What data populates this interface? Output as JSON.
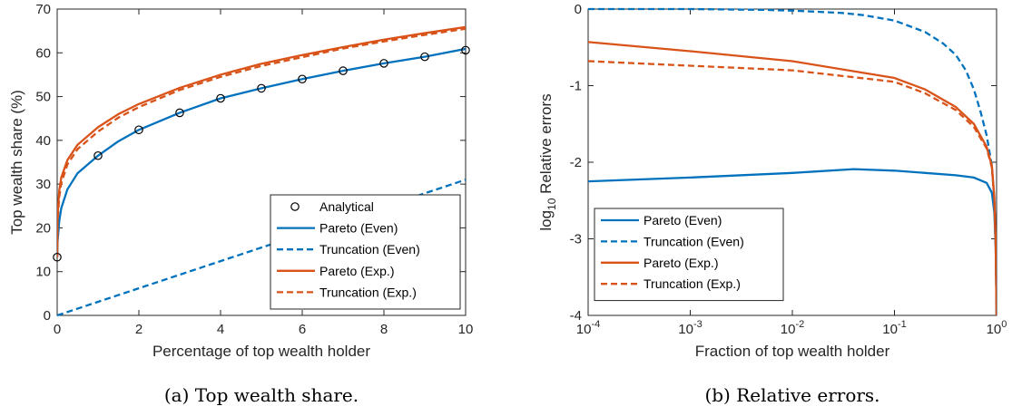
{
  "colors": {
    "blue": "#0072BD",
    "orange": "#D95319",
    "axis": "#262626"
  },
  "chart_data": [
    {
      "type": "line",
      "caption": "(a) Top wealth share.",
      "xlabel": "Percentage of top wealth holder",
      "ylabel": "Top wealth share (%)",
      "xlim": [
        0,
        10
      ],
      "ylim": [
        0,
        70
      ],
      "xticks": [
        0,
        2,
        4,
        6,
        8,
        10
      ],
      "yticks": [
        0,
        10,
        20,
        30,
        40,
        50,
        60,
        70
      ],
      "xtick_labels": [
        "0",
        "2",
        "4",
        "6",
        "8",
        "10"
      ],
      "ytick_labels": [
        "0",
        "10",
        "20",
        "30",
        "40",
        "50",
        "60",
        "70"
      ],
      "grid": false,
      "legend_position": "bottom-right",
      "series": [
        {
          "name": "Analytical",
          "style": "markers",
          "color": "#000000",
          "x": [
            0,
            1,
            2,
            3,
            4,
            5,
            6,
            7,
            8,
            9,
            10
          ],
          "y": [
            13.3,
            36.5,
            42.4,
            46.3,
            49.6,
            51.9,
            54.0,
            55.9,
            57.6,
            59.1,
            60.6
          ]
        },
        {
          "name": "Pareto (Even)",
          "style": "solid",
          "color": "#0072BD",
          "x": [
            0,
            0.01,
            0.05,
            0.1,
            0.25,
            0.5,
            1,
            1.5,
            2,
            3,
            4,
            5,
            6,
            7,
            8,
            9,
            10
          ],
          "y": [
            13.3,
            17.0,
            21.5,
            24.5,
            28.8,
            32.5,
            36.5,
            39.8,
            42.4,
            46.3,
            49.6,
            51.9,
            54.0,
            55.9,
            57.6,
            59.1,
            60.9
          ]
        },
        {
          "name": "Truncation (Even)",
          "style": "dashed",
          "color": "#0072BD",
          "x": [
            0,
            10
          ],
          "y": [
            0,
            31.0
          ]
        },
        {
          "name": "Pareto (Exp.)",
          "style": "solid",
          "color": "#D95319",
          "x": [
            0,
            0.01,
            0.05,
            0.1,
            0.25,
            0.5,
            1,
            1.5,
            2,
            3,
            4,
            5,
            6,
            7,
            8,
            9,
            10
          ],
          "y": [
            13.3,
            23.0,
            28.5,
            31.5,
            35.5,
            39.0,
            43.0,
            46.0,
            48.3,
            52.0,
            55.0,
            57.5,
            59.5,
            61.3,
            63.0,
            64.5,
            65.9
          ]
        },
        {
          "name": "Truncation (Exp.)",
          "style": "dashed",
          "color": "#D95319",
          "x": [
            0,
            0.01,
            0.05,
            0.1,
            0.25,
            0.5,
            1,
            1.5,
            2,
            3,
            4,
            5,
            6,
            7,
            8,
            9,
            10
          ],
          "y": [
            13.3,
            21.5,
            27.0,
            30.2,
            34.5,
            38.0,
            42.0,
            45.2,
            47.6,
            51.5,
            54.5,
            57.0,
            59.0,
            61.0,
            62.6,
            64.1,
            65.5
          ]
        }
      ]
    },
    {
      "type": "line",
      "caption": "(b) Relative errors.",
      "xlabel": "Fraction of top wealth holder",
      "ylabel_main": "log",
      "ylabel_sub": "10",
      "ylabel_rest": " Relative errors",
      "xscale": "log",
      "xlim": [
        0.0001,
        1
      ],
      "ylim": [
        -4,
        0
      ],
      "xticks": [
        0.0001,
        0.001,
        0.01,
        0.1,
        1
      ],
      "xtick_base": "10",
      "xtick_exponents": [
        "-4",
        "-3",
        "-2",
        "-1",
        "0"
      ],
      "yticks": [
        -4,
        -3,
        -2,
        -1,
        0
      ],
      "ytick_labels": [
        "-4",
        "-3",
        "-2",
        "-1",
        "0"
      ],
      "grid": false,
      "legend_position": "bottom-left",
      "series": [
        {
          "name": "Pareto (Even)",
          "style": "solid",
          "color": "#0072BD",
          "x": [
            0.0001,
            0.001,
            0.01,
            0.04,
            0.1,
            0.2,
            0.4,
            0.6,
            0.8,
            0.9,
            0.95,
            0.98,
            0.99,
            1
          ],
          "y": [
            -2.25,
            -2.2,
            -2.14,
            -2.09,
            -2.11,
            -2.14,
            -2.17,
            -2.2,
            -2.27,
            -2.4,
            -2.65,
            -3.1,
            -3.5,
            -4.0
          ]
        },
        {
          "name": "Truncation (Even)",
          "style": "dashed",
          "color": "#0072BD",
          "x": [
            0.0001,
            0.001,
            0.005,
            0.01,
            0.03,
            0.05,
            0.1,
            0.2,
            0.3,
            0.4,
            0.5,
            0.6,
            0.7,
            0.8,
            0.9,
            0.95,
            0.98,
            1
          ],
          "y": [
            0,
            0,
            -0.01,
            -0.02,
            -0.05,
            -0.08,
            -0.15,
            -0.3,
            -0.45,
            -0.6,
            -0.8,
            -1.05,
            -1.35,
            -1.65,
            -2.05,
            -2.5,
            -3.1,
            -4.0
          ]
        },
        {
          "name": "Pareto (Exp.)",
          "style": "solid",
          "color": "#D95319",
          "x": [
            0.0001,
            0.001,
            0.01,
            0.1,
            0.2,
            0.4,
            0.6,
            0.8,
            0.9,
            0.95,
            0.98,
            1
          ],
          "y": [
            -0.43,
            -0.55,
            -0.68,
            -0.9,
            -1.05,
            -1.28,
            -1.5,
            -1.8,
            -2.05,
            -2.45,
            -3.05,
            -4.0
          ]
        },
        {
          "name": "Truncation (Exp.)",
          "style": "dashed",
          "color": "#D95319",
          "x": [
            0.0001,
            0.001,
            0.01,
            0.1,
            0.2,
            0.4,
            0.6,
            0.8,
            0.9,
            0.95,
            0.98,
            1
          ],
          "y": [
            -0.68,
            -0.74,
            -0.8,
            -0.95,
            -1.1,
            -1.32,
            -1.54,
            -1.82,
            -2.07,
            -2.47,
            -3.07,
            -4.0
          ]
        }
      ]
    }
  ]
}
